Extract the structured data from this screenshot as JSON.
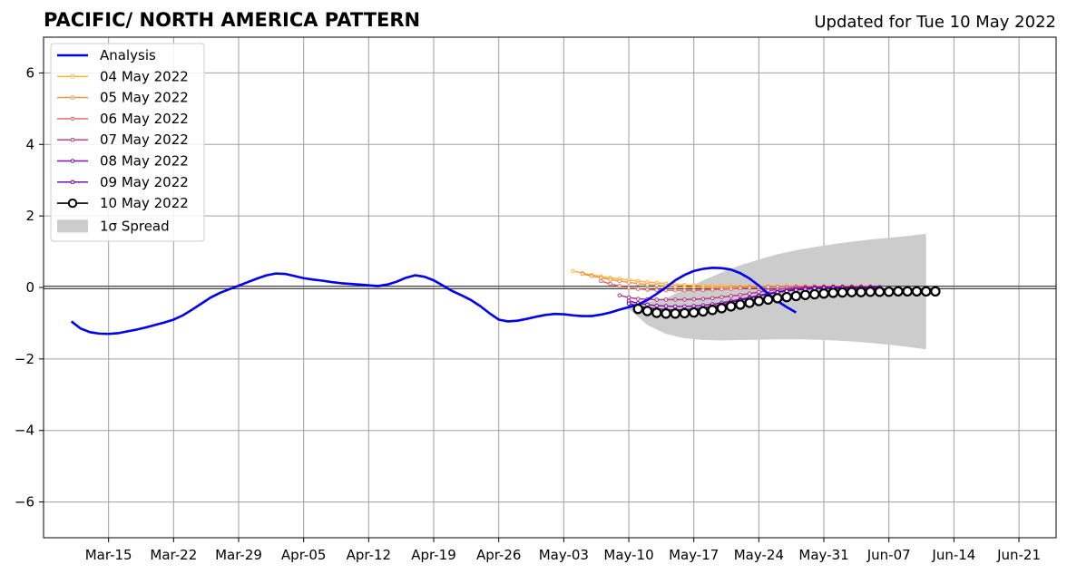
{
  "chart_data": {
    "type": "line",
    "title": "PACIFIC/ NORTH AMERICA PATTERN",
    "subtitle": "Updated for Tue 10 May 2022",
    "ylim": [
      -7,
      7
    ],
    "yticks": [
      -6,
      -4,
      -2,
      0,
      2,
      4,
      6
    ],
    "ytick_labels": [
      "−6",
      "−4",
      "−2",
      "0",
      "2",
      "4",
      "6"
    ],
    "xlim_days": [
      -63,
      46
    ],
    "xtick_labels": [
      "Mar-15",
      "Mar-22",
      "Mar-29",
      "Apr-05",
      "Apr-12",
      "Apr-19",
      "Apr-26",
      "May-03",
      "May-10",
      "May-17",
      "May-24",
      "May-31",
      "Jun-07",
      "Jun-14",
      "Jun-21"
    ],
    "xticks_days": [
      -56,
      -49,
      -42,
      -35,
      -28,
      -21,
      -14,
      -7,
      0,
      7,
      14,
      21,
      28,
      35,
      42
    ],
    "grid": true,
    "legend_placement": "upper left",
    "analysis": {
      "name": "Analysis",
      "color": "#0000ee",
      "start_day": -60,
      "values": [
        -0.95,
        -1.15,
        -1.25,
        -1.29,
        -1.3,
        -1.28,
        -1.23,
        -1.18,
        -1.12,
        -1.05,
        -0.98,
        -0.9,
        -0.78,
        -0.62,
        -0.45,
        -0.28,
        -0.15,
        -0.05,
        0.05,
        0.15,
        0.25,
        0.34,
        0.39,
        0.38,
        0.32,
        0.26,
        0.22,
        0.19,
        0.15,
        0.12,
        0.1,
        0.08,
        0.06,
        0.04,
        0.08,
        0.16,
        0.27,
        0.34,
        0.3,
        0.2,
        0.05,
        -0.1,
        -0.22,
        -0.35,
        -0.52,
        -0.72,
        -0.9,
        -0.95,
        -0.93,
        -0.88,
        -0.82,
        -0.77,
        -0.74,
        -0.75,
        -0.78,
        -0.8,
        -0.8,
        -0.76,
        -0.7,
        -0.62,
        -0.55,
        -0.48,
        -0.35,
        -0.18,
        0.0,
        0.2,
        0.35,
        0.46,
        0.52,
        0.55,
        0.54,
        0.5,
        0.4,
        0.25,
        0.05,
        -0.18,
        -0.38,
        -0.55,
        -0.7
      ]
    },
    "forecasts": [
      {
        "name": "04 May 2022",
        "color": "#fdb42f",
        "start_day": -6,
        "values": [
          0.46,
          0.4,
          0.35,
          0.31,
          0.27,
          0.24,
          0.21,
          0.18,
          0.15,
          0.13,
          0.11,
          0.09,
          0.07,
          0.06,
          0.05,
          0.04,
          0.04,
          0.03,
          0.03,
          0.03,
          0.03,
          0.03,
          0.03,
          0.03,
          0.03,
          0.03,
          0.03,
          0.03,
          0.03,
          0.03,
          0.03,
          0.03,
          0.03
        ]
      },
      {
        "name": "05 May 2022",
        "color": "#f68f44",
        "start_day": -5,
        "values": [
          0.38,
          0.32,
          0.27,
          0.22,
          0.18,
          0.14,
          0.11,
          0.08,
          0.06,
          0.04,
          0.02,
          0.01,
          0.0,
          0.0,
          0.0,
          0.0,
          0.01,
          0.01,
          0.02,
          0.02,
          0.02,
          0.02,
          0.03,
          0.03,
          0.03,
          0.03,
          0.03,
          0.03,
          0.03,
          0.03,
          0.03,
          0.03
        ]
      },
      {
        "name": "06 May 2022",
        "color": "#e16462",
        "start_day": -3,
        "values": [
          0.18,
          0.1,
          0.04,
          -0.01,
          -0.04,
          -0.06,
          -0.07,
          -0.08,
          -0.08,
          -0.08,
          -0.08,
          -0.07,
          -0.06,
          -0.05,
          -0.04,
          -0.02,
          -0.01,
          0.0,
          0.01,
          0.01,
          0.02,
          0.02,
          0.02,
          0.02,
          0.02,
          0.02,
          0.02,
          0.02
        ]
      },
      {
        "name": "07 May 2022",
        "color": "#b83289",
        "start_day": -1,
        "values": [
          -0.22,
          -0.28,
          -0.32,
          -0.33,
          -0.34,
          -0.34,
          -0.34,
          -0.34,
          -0.33,
          -0.32,
          -0.3,
          -0.27,
          -0.24,
          -0.21,
          -0.17,
          -0.13,
          -0.09,
          -0.06,
          -0.03,
          -0.01,
          0.0,
          0.01,
          0.02,
          0.02,
          0.02,
          0.02,
          0.02,
          0.02
        ]
      },
      {
        "name": "08 May 2022",
        "color": "#8b0aa5",
        "start_day": 0,
        "values": [
          -0.38,
          -0.44,
          -0.48,
          -0.51,
          -0.52,
          -0.53,
          -0.53,
          -0.52,
          -0.5,
          -0.47,
          -0.43,
          -0.38,
          -0.33,
          -0.28,
          -0.22,
          -0.17,
          -0.12,
          -0.08,
          -0.05,
          -0.02,
          0.0,
          0.01,
          0.01,
          0.01,
          0.01,
          0.01,
          0.01,
          0.01
        ]
      },
      {
        "name": "09 May 2022",
        "color": "#5b02a3",
        "start_day": 0,
        "values": [
          -0.45,
          -0.52,
          -0.57,
          -0.6,
          -0.62,
          -0.63,
          -0.62,
          -0.6,
          -0.57,
          -0.53,
          -0.48,
          -0.42,
          -0.36,
          -0.3,
          -0.24,
          -0.19,
          -0.14,
          -0.1,
          -0.07,
          -0.05,
          -0.03,
          -0.02,
          -0.01,
          -0.01,
          -0.01,
          -0.01,
          -0.01,
          -0.01
        ]
      }
    ],
    "latest": {
      "name": "10 May 2022",
      "color": "#000000",
      "start_day": 1,
      "values": [
        -0.6,
        -0.66,
        -0.71,
        -0.73,
        -0.73,
        -0.72,
        -0.7,
        -0.67,
        -0.63,
        -0.58,
        -0.53,
        -0.48,
        -0.43,
        -0.38,
        -0.34,
        -0.3,
        -0.27,
        -0.24,
        -0.21,
        -0.19,
        -0.17,
        -0.15,
        -0.14,
        -0.13,
        -0.13,
        -0.12,
        -0.12,
        -0.12,
        -0.11,
        -0.11,
        -0.11,
        -0.11,
        -0.11
      ]
    },
    "spread": {
      "name": "1σ Spread",
      "color": "#cccccc",
      "days": [
        0,
        2,
        4,
        6,
        8,
        10,
        12,
        14,
        16,
        18,
        20,
        22,
        24,
        26,
        28,
        30,
        32
      ],
      "upper": [
        -0.4,
        -0.4,
        -0.3,
        -0.05,
        0.2,
        0.42,
        0.62,
        0.78,
        0.93,
        1.04,
        1.13,
        1.21,
        1.28,
        1.34,
        1.39,
        1.44,
        1.5
      ],
      "lower": [
        -0.6,
        -1.05,
        -1.3,
        -1.42,
        -1.47,
        -1.48,
        -1.47,
        -1.46,
        -1.45,
        -1.45,
        -1.46,
        -1.48,
        -1.51,
        -1.55,
        -1.6,
        -1.66,
        -1.73
      ]
    }
  }
}
